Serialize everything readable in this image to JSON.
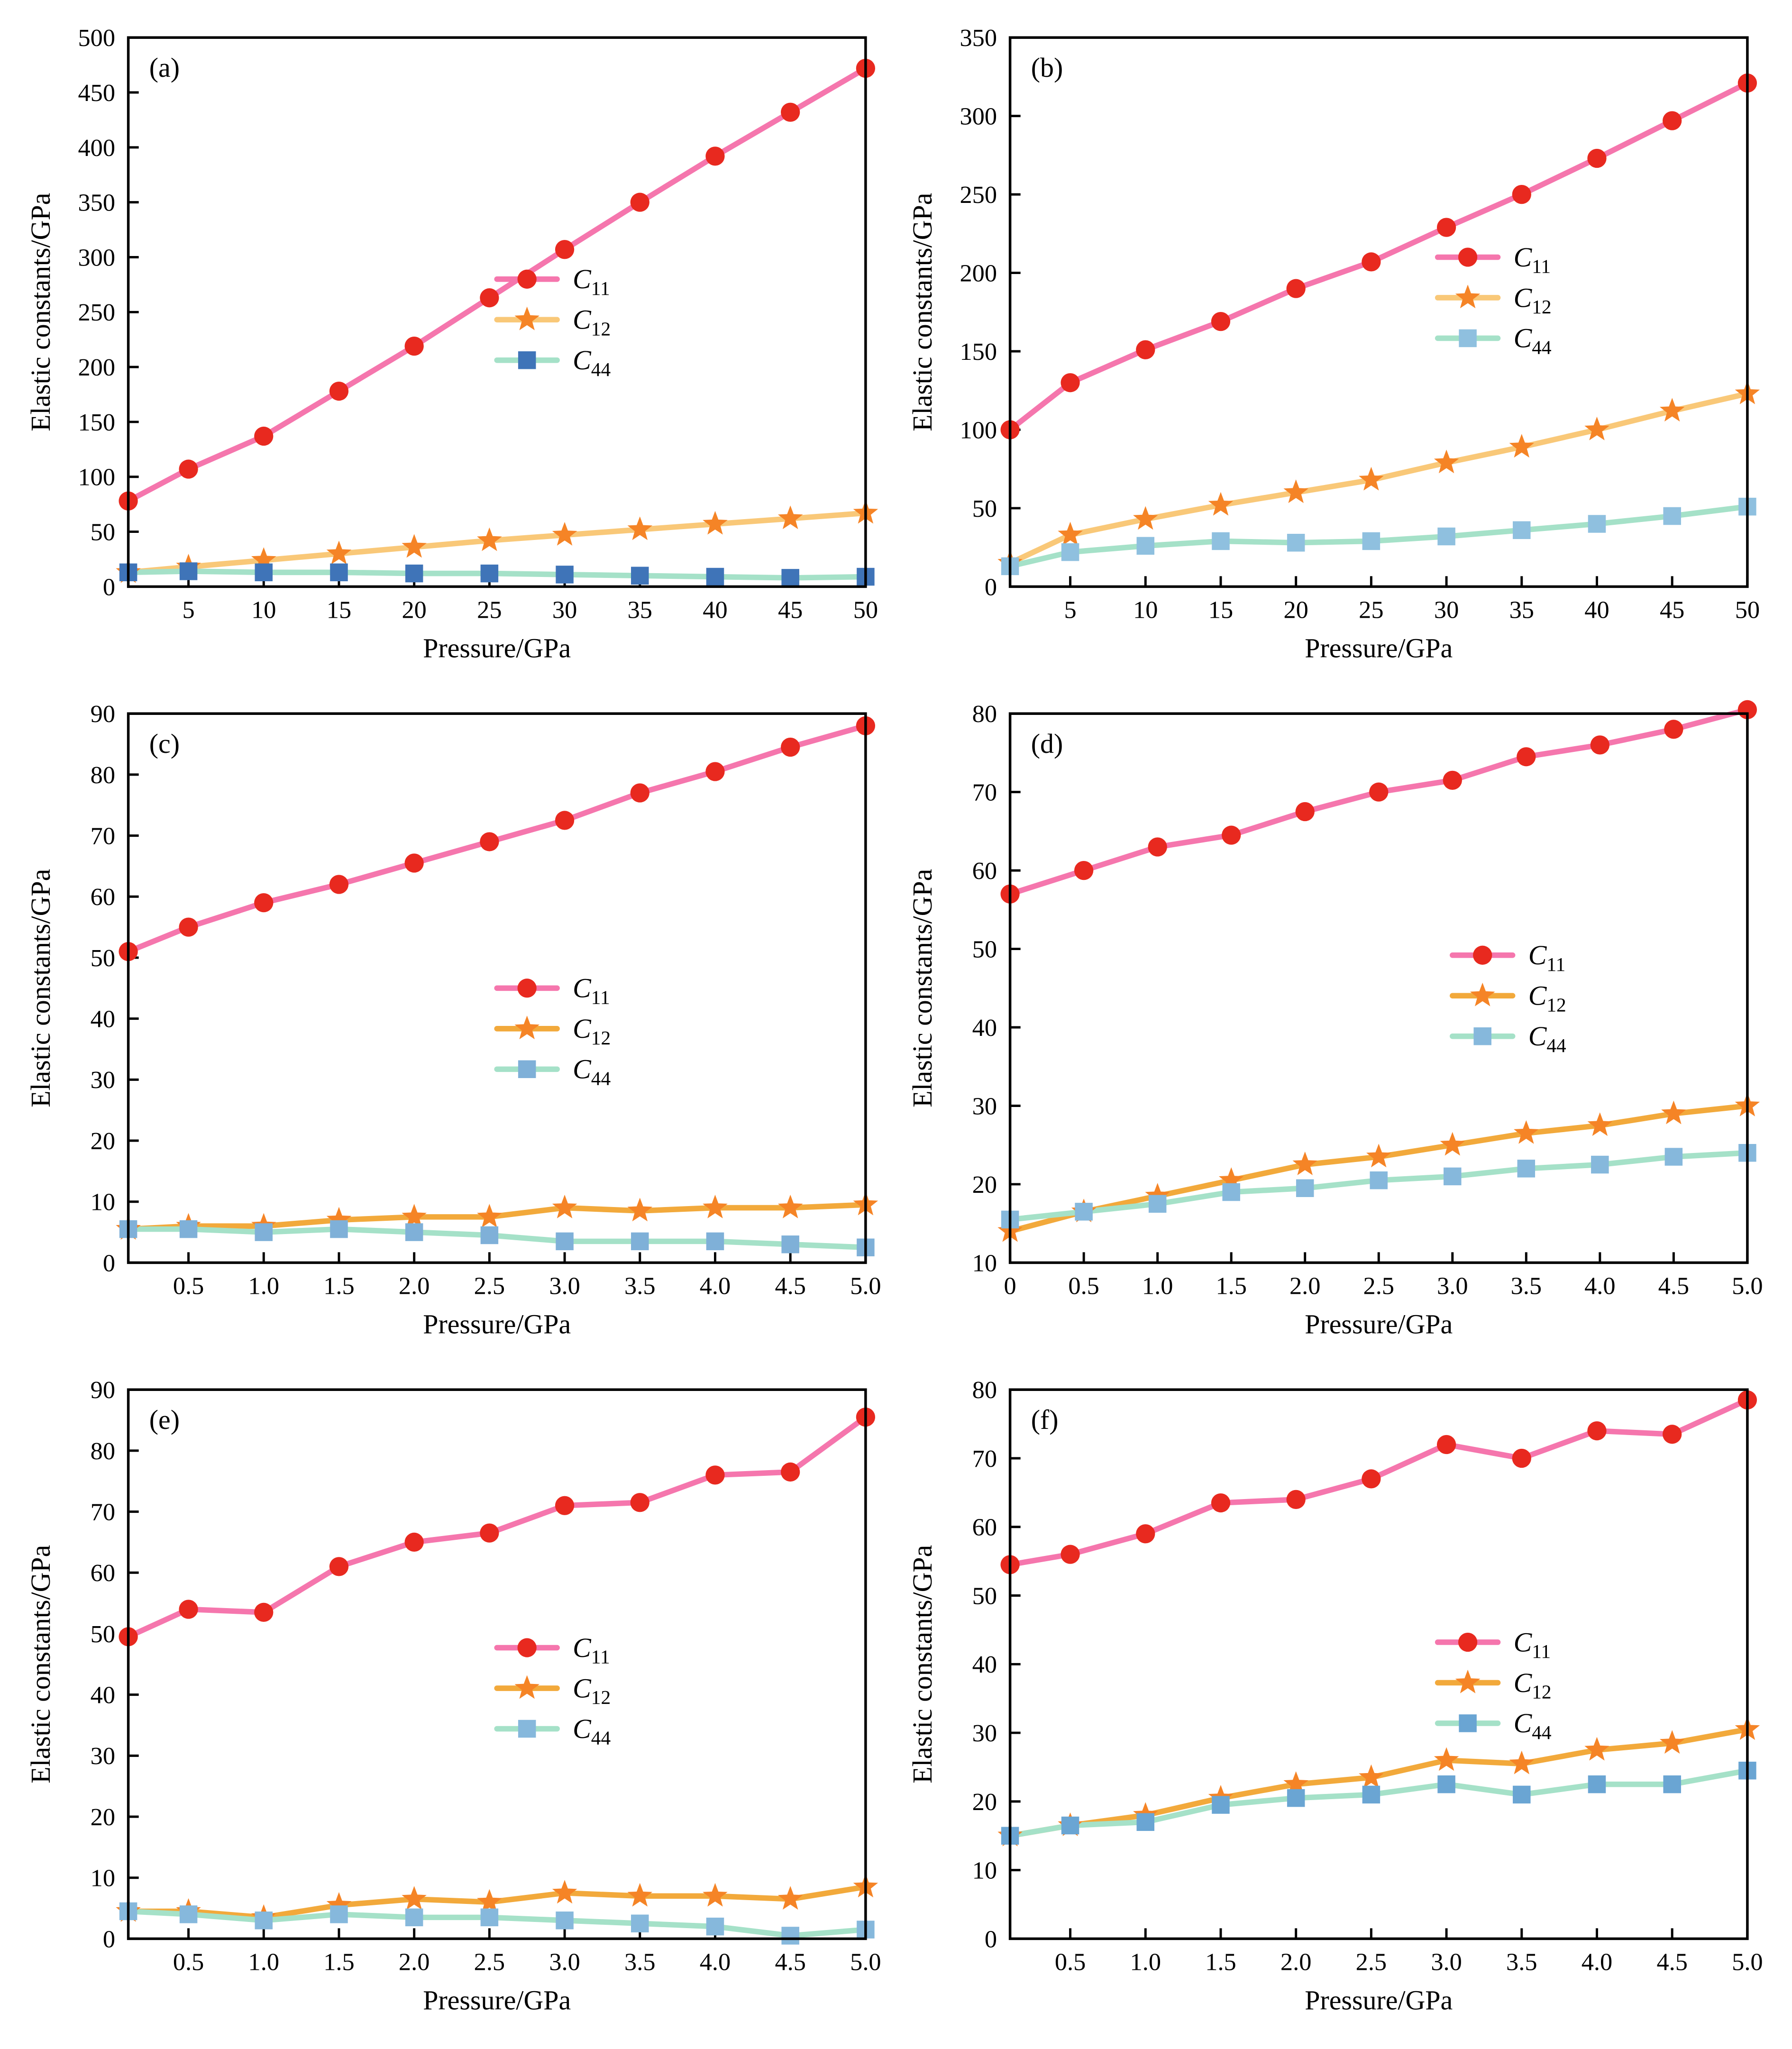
{
  "page": {
    "background": "#ffffff"
  },
  "chart_data": [
    {
      "type": "line",
      "tag": "(a)",
      "xlabel": "Pressure/GPa",
      "ylabel": "Elastic constants/GPa",
      "xlim": [
        1,
        50
      ],
      "ylim": [
        0,
        500
      ],
      "ystep": 50,
      "xtick_vals": [
        5,
        10,
        15,
        20,
        25,
        30,
        35,
        40,
        45,
        50
      ],
      "xtick_labels": [
        "5",
        "10",
        "15",
        "20",
        "25",
        "30",
        "35",
        "40",
        "45",
        "50"
      ],
      "x": [
        1,
        5,
        10,
        15,
        20,
        25,
        30,
        35,
        40,
        45,
        50
      ],
      "legend": {
        "x": 0.5,
        "y": 0.44
      },
      "series": [
        {
          "name": "C11",
          "symbol": "C",
          "sub": "11",
          "marker": "circle",
          "line_color": "#f576ad",
          "marker_color": "#e8291f",
          "values": [
            78,
            107,
            137,
            178,
            219,
            263,
            307,
            350,
            392,
            432,
            472
          ]
        },
        {
          "name": "C12",
          "symbol": "C",
          "sub": "12",
          "marker": "star",
          "line_color": "#f9c878",
          "marker_color": "#f58426",
          "values": [
            13,
            18,
            24,
            30,
            36,
            42,
            47,
            52,
            57,
            62,
            67
          ]
        },
        {
          "name": "C44",
          "symbol": "C",
          "sub": "44",
          "marker": "square",
          "line_color": "#a5e1c8",
          "marker_color": "#3f74b8",
          "values": [
            13,
            14,
            13,
            13,
            12,
            12,
            11,
            10,
            9,
            8,
            9
          ]
        }
      ]
    },
    {
      "type": "line",
      "tag": "(b)",
      "xlabel": "Pressure/GPa",
      "ylabel": "Elastic constants/GPa",
      "xlim": [
        1,
        50
      ],
      "ylim": [
        0,
        350
      ],
      "ystep": 50,
      "xtick_vals": [
        5,
        10,
        15,
        20,
        25,
        30,
        35,
        40,
        45,
        50
      ],
      "xtick_labels": [
        "5",
        "10",
        "15",
        "20",
        "25",
        "30",
        "35",
        "40",
        "45",
        "50"
      ],
      "x": [
        1,
        5,
        10,
        15,
        20,
        25,
        30,
        35,
        40,
        45,
        50
      ],
      "legend": {
        "x": 0.58,
        "y": 0.4
      },
      "series": [
        {
          "name": "C11",
          "symbol": "C",
          "sub": "11",
          "marker": "circle",
          "line_color": "#f576ad",
          "marker_color": "#e8291f",
          "values": [
            100,
            130,
            151,
            169,
            190,
            207,
            229,
            250,
            273,
            297,
            321
          ]
        },
        {
          "name": "C12",
          "symbol": "C",
          "sub": "12",
          "marker": "star",
          "line_color": "#f9c878",
          "marker_color": "#f58426",
          "values": [
            15,
            33,
            43,
            52,
            60,
            68,
            79,
            89,
            100,
            112,
            123
          ]
        },
        {
          "name": "C44",
          "symbol": "C",
          "sub": "44",
          "marker": "square",
          "line_color": "#a5e1c8",
          "marker_color": "#8fc0df",
          "values": [
            13,
            22,
            26,
            29,
            28,
            29,
            32,
            36,
            40,
            45,
            51
          ]
        }
      ]
    },
    {
      "type": "line",
      "tag": "(c)",
      "xlabel": "Pressure/GPa",
      "ylabel": "Elastic constants/GPa",
      "xlim": [
        0.1,
        5
      ],
      "ylim": [
        0,
        90
      ],
      "ystep": 10,
      "xtick_vals": [
        0.5,
        1.0,
        1.5,
        2.0,
        2.5,
        3.0,
        3.5,
        4.0,
        4.5,
        5.0
      ],
      "xtick_labels": [
        "0.5",
        "1.0",
        "1.5",
        "2.0",
        "2.5",
        "3.0",
        "3.5",
        "4.0",
        "4.5",
        "5.0"
      ],
      "x": [
        0.1,
        0.5,
        1.0,
        1.5,
        2.0,
        2.5,
        3.0,
        3.5,
        4.0,
        4.5,
        5.0
      ],
      "legend": {
        "x": 0.5,
        "y": 0.5
      },
      "series": [
        {
          "name": "C11",
          "symbol": "C",
          "sub": "11",
          "marker": "circle",
          "line_color": "#f576ad",
          "marker_color": "#e8291f",
          "values": [
            51,
            55,
            59,
            62,
            65.5,
            69,
            72.5,
            77,
            80.5,
            84.5,
            88
          ]
        },
        {
          "name": "C12",
          "symbol": "C",
          "sub": "12",
          "marker": "star",
          "line_color": "#f2a93b",
          "marker_color": "#f58426",
          "values": [
            5.5,
            6,
            6,
            7,
            7.5,
            7.5,
            9,
            8.5,
            9,
            9,
            9.5
          ]
        },
        {
          "name": "C44",
          "symbol": "C",
          "sub": "44",
          "marker": "square",
          "line_color": "#a5e1c8",
          "marker_color": "#7fb0d8",
          "values": [
            5.5,
            5.5,
            5,
            5.5,
            5,
            4.5,
            3.5,
            3.5,
            3.5,
            3,
            2.5
          ]
        }
      ]
    },
    {
      "type": "line",
      "tag": "(d)",
      "xlabel": "Pressure/GPa",
      "ylabel": "Elastic constants/GPa",
      "xlim": [
        0,
        5
      ],
      "ylim": [
        10,
        80
      ],
      "ystep": 10,
      "xtick_vals": [
        0,
        0.5,
        1.0,
        1.5,
        2.0,
        2.5,
        3.0,
        3.5,
        4.0,
        4.5,
        5.0
      ],
      "xtick_labels": [
        "0",
        "0.5",
        "1.0",
        "1.5",
        "2.0",
        "2.5",
        "3.0",
        "3.5",
        "4.0",
        "4.5",
        "5.0"
      ],
      "x": [
        0,
        0.5,
        1.0,
        1.5,
        2.0,
        2.5,
        3.0,
        3.5,
        4.0,
        4.5,
        5.0
      ],
      "legend": {
        "x": 0.6,
        "y": 0.44
      },
      "series": [
        {
          "name": "C11",
          "symbol": "C",
          "sub": "11",
          "marker": "circle",
          "line_color": "#f576ad",
          "marker_color": "#e8291f",
          "values": [
            57,
            60,
            63,
            64.5,
            67.5,
            70,
            71.5,
            74.5,
            76,
            78,
            80.5
          ]
        },
        {
          "name": "C12",
          "symbol": "C",
          "sub": "12",
          "marker": "star",
          "line_color": "#f2a93b",
          "marker_color": "#f58426",
          "values": [
            14,
            16.5,
            18.5,
            20.5,
            22.5,
            23.5,
            25,
            26.5,
            27.5,
            29,
            30
          ]
        },
        {
          "name": "C44",
          "symbol": "C",
          "sub": "44",
          "marker": "square",
          "line_color": "#a5e1c8",
          "marker_color": "#86b8dc",
          "values": [
            15.5,
            16.5,
            17.5,
            19,
            19.5,
            20.5,
            21,
            22,
            22.5,
            23.5,
            24
          ]
        }
      ]
    },
    {
      "type": "line",
      "tag": "(e)",
      "xlabel": "Pressure/GPa",
      "ylabel": "Elastic constants/GPa",
      "xlim": [
        0.1,
        5
      ],
      "ylim": [
        0,
        90
      ],
      "ystep": 10,
      "xtick_vals": [
        0.5,
        1.0,
        1.5,
        2.0,
        2.5,
        3.0,
        3.5,
        4.0,
        4.5,
        5.0
      ],
      "xtick_labels": [
        "0.5",
        "1.0",
        "1.5",
        "2.0",
        "2.5",
        "3.0",
        "3.5",
        "4.0",
        "4.5",
        "5.0"
      ],
      "x": [
        0.1,
        0.5,
        1.0,
        1.5,
        2.0,
        2.5,
        3.0,
        3.5,
        4.0,
        4.5,
        5.0
      ],
      "legend": {
        "x": 0.5,
        "y": 0.47
      },
      "series": [
        {
          "name": "C11",
          "symbol": "C",
          "sub": "11",
          "marker": "circle",
          "line_color": "#f576ad",
          "marker_color": "#e8291f",
          "values": [
            49.5,
            54,
            53.5,
            61,
            65,
            66.5,
            71,
            71.5,
            76,
            76.5,
            85.5
          ]
        },
        {
          "name": "C12",
          "symbol": "C",
          "sub": "12",
          "marker": "star",
          "line_color": "#f2a93b",
          "marker_color": "#f58426",
          "values": [
            4.5,
            4.5,
            3.5,
            5.5,
            6.5,
            6,
            7.5,
            7,
            7,
            6.5,
            8.5
          ]
        },
        {
          "name": "C44",
          "symbol": "C",
          "sub": "44",
          "marker": "square",
          "line_color": "#a5e1c8",
          "marker_color": "#86b8dc",
          "values": [
            4.5,
            4,
            3,
            4,
            3.5,
            3.5,
            3,
            2.5,
            2,
            0.5,
            1.5
          ]
        }
      ]
    },
    {
      "type": "line",
      "tag": "(f)",
      "xlabel": "Pressure/GPa",
      "ylabel": "Elastic constants/GPa",
      "xlim": [
        0.1,
        5
      ],
      "ylim": [
        0,
        80
      ],
      "ystep": 10,
      "xtick_vals": [
        0.5,
        1.0,
        1.5,
        2.0,
        2.5,
        3.0,
        3.5,
        4.0,
        4.5,
        5.0
      ],
      "xtick_labels": [
        "0.5",
        "1.0",
        "1.5",
        "2.0",
        "2.5",
        "3.0",
        "3.5",
        "4.0",
        "4.5",
        "5.0"
      ],
      "x": [
        0.1,
        0.5,
        1.0,
        1.5,
        2.0,
        2.5,
        3.0,
        3.5,
        4.0,
        4.5,
        5.0
      ],
      "legend": {
        "x": 0.58,
        "y": 0.46
      },
      "series": [
        {
          "name": "C11",
          "symbol": "C",
          "sub": "11",
          "marker": "circle",
          "line_color": "#f576ad",
          "marker_color": "#e8291f",
          "values": [
            54.5,
            56,
            59,
            63.5,
            64,
            67,
            72,
            70,
            74,
            73.5,
            78.5
          ]
        },
        {
          "name": "C12",
          "symbol": "C",
          "sub": "12",
          "marker": "star",
          "line_color": "#f2a93b",
          "marker_color": "#f58426",
          "values": [
            15,
            16.5,
            18,
            20.5,
            22.5,
            23.5,
            26,
            25.5,
            27.5,
            28.5,
            30.5
          ]
        },
        {
          "name": "C44",
          "symbol": "C",
          "sub": "44",
          "marker": "square",
          "line_color": "#a5e1c8",
          "marker_color": "#6aa5d3",
          "values": [
            15,
            16.5,
            17,
            19.5,
            20.5,
            21,
            22.5,
            21,
            22.5,
            22.5,
            24.5
          ]
        }
      ]
    }
  ]
}
